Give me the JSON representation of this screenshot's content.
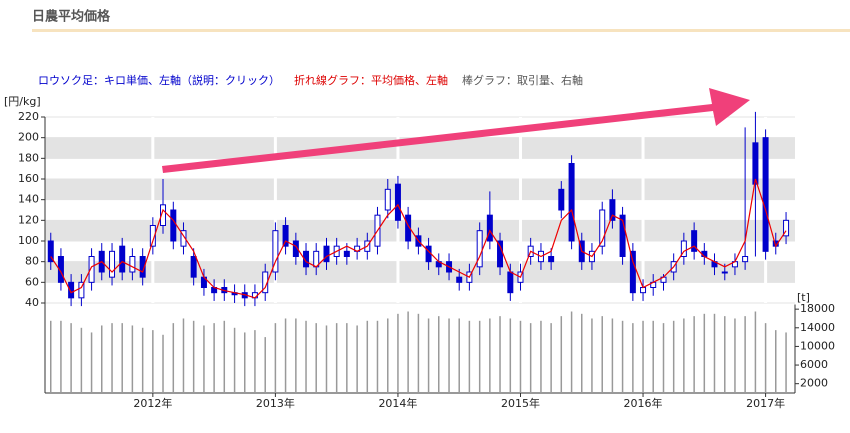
{
  "chart_data": {
    "type": "candlestick",
    "title": "日農平均価格",
    "legend": [
      {
        "text": "ロウソク足：キロ単価、左軸（説明：クリック）",
        "color": "#0000cc"
      },
      {
        "text": "折れ線グラフ：平均価格、左軸",
        "color": "#dd0000"
      },
      {
        "text": "棒グラフ：取引量、右軸",
        "color": "#555555"
      }
    ],
    "ylabel": "[円/kg]",
    "y2label": "[t]",
    "candle_color": "#0000cc",
    "x": [
      2011.167,
      2011.25,
      2011.333,
      2011.417,
      2011.5,
      2011.583,
      2011.667,
      2011.75,
      2011.833,
      2011.917,
      2012.0,
      2012.083,
      2012.167,
      2012.25,
      2012.333,
      2012.417,
      2012.5,
      2012.583,
      2012.667,
      2012.75,
      2012.833,
      2012.917,
      2013.0,
      2013.083,
      2013.167,
      2013.25,
      2013.333,
      2013.417,
      2013.5,
      2013.583,
      2013.667,
      2013.75,
      2013.833,
      2013.917,
      2014.0,
      2014.083,
      2014.167,
      2014.25,
      2014.333,
      2014.417,
      2014.5,
      2014.583,
      2014.667,
      2014.75,
      2014.833,
      2014.917,
      2015.0,
      2015.083,
      2015.167,
      2015.25,
      2015.333,
      2015.417,
      2015.5,
      2015.583,
      2015.667,
      2015.75,
      2015.833,
      2015.917,
      2016.0,
      2016.083,
      2016.167,
      2016.25,
      2016.333,
      2016.417,
      2016.5,
      2016.583,
      2016.667,
      2016.75,
      2016.833,
      2016.917,
      2017.0,
      2017.083,
      2017.167
    ],
    "open": [
      100,
      85,
      60,
      45,
      60,
      90,
      65,
      95,
      70,
      85,
      95,
      115,
      130,
      95,
      85,
      65,
      55,
      55,
      50,
      50,
      45,
      50,
      70,
      115,
      100,
      90,
      75,
      95,
      85,
      90,
      90,
      90,
      95,
      130,
      155,
      125,
      105,
      95,
      80,
      80,
      65,
      60,
      75,
      125,
      100,
      70,
      60,
      85,
      80,
      85,
      150,
      175,
      100,
      80,
      95,
      140,
      125,
      90,
      50,
      55,
      60,
      70,
      85,
      110,
      90,
      80,
      70,
      75,
      80,
      195,
      200,
      100,
      105
    ],
    "close": [
      80,
      60,
      45,
      60,
      85,
      70,
      90,
      70,
      85,
      65,
      115,
      135,
      100,
      110,
      65,
      55,
      50,
      50,
      48,
      45,
      50,
      70,
      110,
      95,
      85,
      75,
      90,
      80,
      95,
      85,
      95,
      100,
      125,
      150,
      120,
      100,
      95,
      80,
      75,
      70,
      60,
      70,
      110,
      100,
      75,
      50,
      70,
      95,
      90,
      80,
      130,
      100,
      80,
      90,
      130,
      120,
      85,
      50,
      55,
      60,
      65,
      80,
      100,
      90,
      85,
      75,
      70,
      80,
      85,
      155,
      90,
      95,
      120
    ],
    "high": [
      108,
      93,
      68,
      68,
      93,
      98,
      98,
      103,
      93,
      93,
      123,
      160,
      138,
      118,
      93,
      73,
      63,
      63,
      58,
      58,
      58,
      78,
      118,
      123,
      108,
      98,
      98,
      103,
      103,
      98,
      103,
      108,
      133,
      160,
      163,
      133,
      113,
      103,
      88,
      88,
      73,
      78,
      118,
      148,
      108,
      78,
      78,
      103,
      98,
      93,
      158,
      183,
      108,
      98,
      138,
      150,
      133,
      98,
      63,
      68,
      68,
      88,
      108,
      118,
      98,
      88,
      78,
      88,
      210,
      225,
      208,
      108,
      128
    ],
    "low": [
      72,
      52,
      37,
      37,
      52,
      62,
      57,
      62,
      62,
      57,
      87,
      107,
      92,
      87,
      57,
      47,
      42,
      42,
      40,
      37,
      37,
      42,
      62,
      87,
      77,
      67,
      67,
      72,
      77,
      77,
      82,
      82,
      87,
      122,
      112,
      92,
      87,
      72,
      67,
      62,
      52,
      52,
      67,
      92,
      67,
      42,
      52,
      77,
      72,
      72,
      122,
      92,
      72,
      72,
      87,
      112,
      77,
      42,
      42,
      47,
      52,
      62,
      77,
      82,
      77,
      67,
      62,
      67,
      72,
      85,
      82,
      87,
      97
    ],
    "series": [
      {
        "color": "#ee0000",
        "values": [
          85,
          70,
          50,
          55,
          75,
          80,
          70,
          80,
          75,
          70,
          100,
          130,
          120,
          105,
          90,
          65,
          55,
          52,
          50,
          48,
          45,
          55,
          80,
          100,
          95,
          80,
          75,
          85,
          90,
          95,
          90,
          95,
          110,
          125,
          135,
          115,
          100,
          90,
          80,
          75,
          70,
          65,
          85,
          110,
          95,
          70,
          65,
          90,
          85,
          90,
          120,
          130,
          90,
          85,
          100,
          125,
          120,
          80,
          55,
          60,
          65,
          75,
          90,
          95,
          85,
          80,
          75,
          80,
          100,
          160,
          130,
          95,
          110
        ]
      },
      {
        "color": "#999999",
        "axis": "y2",
        "values": [
          15500,
          15500,
          15000,
          14000,
          13000,
          14500,
          15000,
          15000,
          14500,
          14000,
          13500,
          12500,
          15000,
          16000,
          15500,
          14500,
          15000,
          15500,
          14000,
          13000,
          13500,
          12000,
          15000,
          16000,
          16000,
          15500,
          15000,
          14500,
          15000,
          15000,
          14500,
          15500,
          15500,
          16000,
          17000,
          17500,
          17000,
          16000,
          16500,
          16000,
          16000,
          15500,
          15500,
          16000,
          16500,
          16000,
          15500,
          15000,
          15500,
          15000,
          16500,
          17500,
          17000,
          16000,
          16500,
          16000,
          15500,
          15000,
          15500,
          15500,
          15000,
          15500,
          16000,
          16500,
          17000,
          17000,
          16500,
          16000,
          16500,
          17500,
          15000,
          13500,
          13000
        ]
      }
    ],
    "xlim": [
      2011.12,
      2017.24
    ],
    "xticks": [
      {
        "value": 2012,
        "label": "2012年"
      },
      {
        "value": 2013,
        "label": "2013年"
      },
      {
        "value": 2014,
        "label": "2014年"
      },
      {
        "value": 2015,
        "label": "2015年"
      },
      {
        "value": 2016,
        "label": "2016年"
      },
      {
        "value": 2017,
        "label": "2017年"
      }
    ],
    "ylim": [
      40,
      220
    ],
    "yticks": [
      40,
      60,
      80,
      100,
      120,
      140,
      160,
      180,
      200,
      220
    ],
    "y2lim": [
      0,
      19000
    ],
    "y2ticks": [
      2000,
      6000,
      10000,
      14000,
      18000
    ],
    "grid": true
  }
}
